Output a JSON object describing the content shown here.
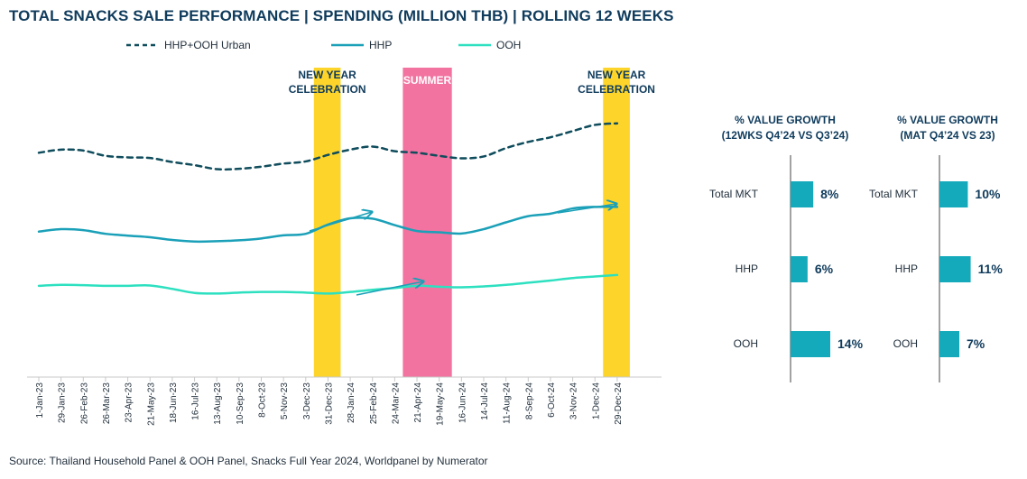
{
  "title": "TOTAL SNACKS SALE PERFORMANCE | SPENDING (MILLION THB) | ROLLING 12 WEEKS",
  "footnote": "Source: Thailand Household Panel & OOH Panel, Snacks Full Year 2024, Worldpanel by Numerator",
  "colors": {
    "hhp_ooh": "#0f4c5c",
    "hhp": "#1aa0b8",
    "ooh": "#2de0c0",
    "new_year_band": "#fdd52a",
    "summer_band": "#f272a0",
    "bar": "#14aabb",
    "text_dark": "#0f3b5c"
  },
  "chart_data": [
    {
      "type": "line",
      "title": "TOTAL SNACKS SALE PERFORMANCE | SPENDING (MILLION THB) | ROLLING 12 WEEKS",
      "x_categories": [
        "1-Jan-23",
        "29-Jan-23",
        "26-Feb-23",
        "26-Mar-23",
        "23-Apr-23",
        "21-May-23",
        "18-Jun-23",
        "16-Jul-23",
        "13-Aug-23",
        "10-Sep-23",
        "8-Oct-23",
        "5-Nov-23",
        "3-Dec-23",
        "31-Dec-23",
        "28-Jan-24",
        "25-Feb-24",
        "24-Mar-24",
        "21-Apr-24",
        "19-May-24",
        "16-Jun-24",
        "14-Jul-24",
        "11-Aug-24",
        "8-Sep-24",
        "6-Oct-24",
        "3-Nov-24",
        "1-Dec-24",
        "29-Dec-24"
      ],
      "y_unit": "Million THB",
      "y_range": [
        0,
        100
      ],
      "grid": false,
      "legend_position": "top-left",
      "series": [
        {
          "name": "HHP+OOH Urban",
          "style": "dashed",
          "values": [
            72.5,
            73.5,
            73.2,
            71.5,
            71.0,
            70.8,
            69.5,
            68.5,
            67.2,
            67.3,
            68.0,
            69.0,
            69.7,
            71.8,
            73.5,
            74.5,
            73.0,
            72.5,
            71.5,
            70.7,
            71.3,
            74.0,
            76.0,
            77.5,
            79.5,
            81.5,
            82.0
          ]
        },
        {
          "name": "HHP",
          "style": "solid",
          "values": [
            47.0,
            47.8,
            47.5,
            46.3,
            45.7,
            45.2,
            44.3,
            43.8,
            43.9,
            44.2,
            44.8,
            45.8,
            46.3,
            49.3,
            51.3,
            51.2,
            49.1,
            47.2,
            46.8,
            46.4,
            47.8,
            50.0,
            52.0,
            52.8,
            54.5,
            55.0,
            55.0
          ]
        },
        {
          "name": "OOH",
          "style": "solid",
          "values": [
            29.5,
            29.8,
            29.7,
            29.5,
            29.5,
            29.6,
            28.5,
            27.2,
            27.0,
            27.3,
            27.5,
            27.5,
            27.3,
            27.0,
            27.5,
            28.2,
            28.8,
            29.5,
            29.2,
            29.0,
            29.3,
            29.8,
            30.5,
            31.2,
            32.0,
            32.5,
            33.0
          ]
        }
      ],
      "bands": [
        {
          "label": "NEW YEAR CELEBRATION",
          "from": "3-Dec-23",
          "to": "31-Dec-23"
        },
        {
          "label": "SUMMER",
          "from": "24-Mar-24",
          "to": "19-May-24"
        },
        {
          "label": "NEW YEAR CELEBRATION",
          "from": "1-Dec-24",
          "to": "29-Dec-24"
        }
      ]
    },
    {
      "type": "bar",
      "title": "% VALUE GROWTH (12WKS Q4'24 VS Q3'24)",
      "title_lines": [
        "% VALUE GROWTH",
        "(12WKS Q4’24 VS Q3’24)"
      ],
      "categories": [
        "Total MKT",
        "HHP",
        "OOH"
      ],
      "values": [
        8,
        6,
        14
      ],
      "value_labels": [
        "8%",
        "6%",
        "14%"
      ],
      "unit": "%",
      "xlim": [
        0,
        30
      ]
    },
    {
      "type": "bar",
      "title": "% VALUE GROWTH (MAT Q4'24 VS 23)",
      "title_lines": [
        "% VALUE GROWTH",
        "(MAT Q4’24 VS 23)"
      ],
      "categories": [
        "Total MKT",
        "HHP",
        "OOH"
      ],
      "values": [
        10,
        11,
        7
      ],
      "value_labels": [
        "10%",
        "11%",
        "7%"
      ],
      "unit": "%",
      "xlim": [
        0,
        30
      ]
    }
  ]
}
